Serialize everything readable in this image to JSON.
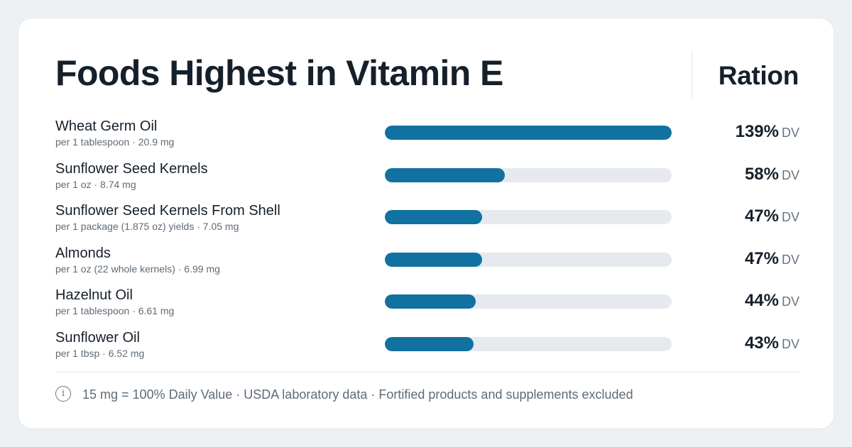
{
  "header": {
    "title": "Foods Highest in Vitamin E",
    "brand": "Ration"
  },
  "colors": {
    "background": "#eef1f4",
    "card": "#ffffff",
    "bar_fill": "#1171a0",
    "bar_track": "#e6eaee",
    "text_primary": "#16202b",
    "text_secondary": "#5f6b77"
  },
  "max_dv": 139,
  "rows": [
    {
      "name": "Wheat Germ Oil",
      "serving": "per 1 tablespoon · 20.9 mg",
      "dv": 139,
      "pct_label": "139%",
      "unit_label": "DV"
    },
    {
      "name": "Sunflower Seed Kernels",
      "serving": "per 1 oz · 8.74 mg",
      "dv": 58,
      "pct_label": "58%",
      "unit_label": "DV"
    },
    {
      "name": "Sunflower Seed Kernels From Shell",
      "serving": "per 1 package (1.875 oz) yields · 7.05 mg",
      "dv": 47,
      "pct_label": "47%",
      "unit_label": "DV"
    },
    {
      "name": "Almonds",
      "serving": "per 1 oz (22 whole kernels) · 6.99 mg",
      "dv": 47,
      "pct_label": "47%",
      "unit_label": "DV"
    },
    {
      "name": "Hazelnut Oil",
      "serving": "per 1 tablespoon · 6.61 mg",
      "dv": 44,
      "pct_label": "44%",
      "unit_label": "DV"
    },
    {
      "name": "Sunflower Oil",
      "serving": "per 1 tbsp · 6.52 mg",
      "dv": 43,
      "pct_label": "43%",
      "unit_label": "DV"
    }
  ],
  "footer": {
    "info_icon": "info-icon",
    "info_glyph": "i",
    "note": "15 mg = 100% Daily Value · USDA laboratory data · Fortified products and supplements excluded"
  }
}
